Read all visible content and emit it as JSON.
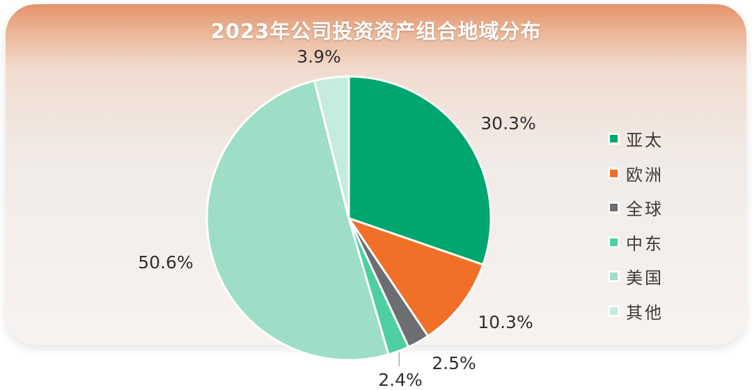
{
  "chart_data": {
    "type": "pie",
    "title": "2023年公司投资资产组合地域分布",
    "legend_position": "right",
    "start_angle_deg": 0,
    "direction": "clockwise",
    "slices": [
      {
        "label": "亚太",
        "value": 30.3,
        "display": "30.3%",
        "color": "#00a66f"
      },
      {
        "label": "欧洲",
        "value": 10.3,
        "display": "10.3%",
        "color": "#f07028"
      },
      {
        "label": "全球",
        "value": 2.5,
        "display": "2.5%",
        "color": "#6d6e71"
      },
      {
        "label": "中东",
        "value": 2.4,
        "display": "2.4%",
        "color": "#4ecfa2"
      },
      {
        "label": "美国",
        "value": 50.6,
        "display": "50.6%",
        "color": "#9edec7"
      },
      {
        "label": "其他",
        "value": 3.9,
        "display": "3.9%",
        "color": "#c5ecdd"
      }
    ]
  }
}
